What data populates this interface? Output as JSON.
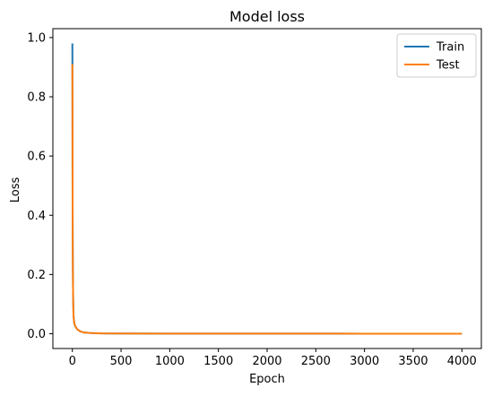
{
  "chart_data": {
    "type": "line",
    "title": "Model loss",
    "xlabel": "Epoch",
    "ylabel": "Loss",
    "xlim": [
      -200,
      4200
    ],
    "ylim": [
      -0.05,
      1.03
    ],
    "xticks": [
      0,
      500,
      1000,
      1500,
      2000,
      2500,
      3000,
      3500,
      4000
    ],
    "yticks": [
      0.0,
      0.2,
      0.4,
      0.6,
      0.8,
      1.0
    ],
    "ytick_labels": [
      "0.0",
      "0.2",
      "0.4",
      "0.6",
      "0.8",
      "1.0"
    ],
    "grid": false,
    "legend_position": "top-right",
    "series": [
      {
        "name": "Train",
        "color": "#1f77b4",
        "x": [
          0,
          0.5,
          1,
          2,
          3,
          5,
          8,
          12,
          20,
          30,
          50,
          80,
          120,
          200,
          300,
          500,
          1000,
          2000,
          3000,
          4000
        ],
        "y": [
          0.98,
          0.92,
          0.82,
          0.55,
          0.38,
          0.22,
          0.12,
          0.06,
          0.035,
          0.025,
          0.015,
          0.008,
          0.004,
          0.002,
          0.001,
          0.0005,
          0.0003,
          0.0002,
          0.0001,
          0.0001
        ]
      },
      {
        "name": "Test",
        "color": "#ff7f0e",
        "x": [
          0,
          1,
          2,
          3,
          5,
          8,
          12,
          20,
          30,
          50,
          80,
          120,
          200,
          300,
          500,
          1000,
          2000,
          3000,
          4000
        ],
        "y": [
          0.91,
          0.8,
          0.55,
          0.38,
          0.22,
          0.12,
          0.06,
          0.035,
          0.025,
          0.015,
          0.008,
          0.004,
          0.002,
          0.001,
          0.0005,
          0.0003,
          0.0002,
          0.0001,
          0.0001
        ]
      }
    ]
  }
}
